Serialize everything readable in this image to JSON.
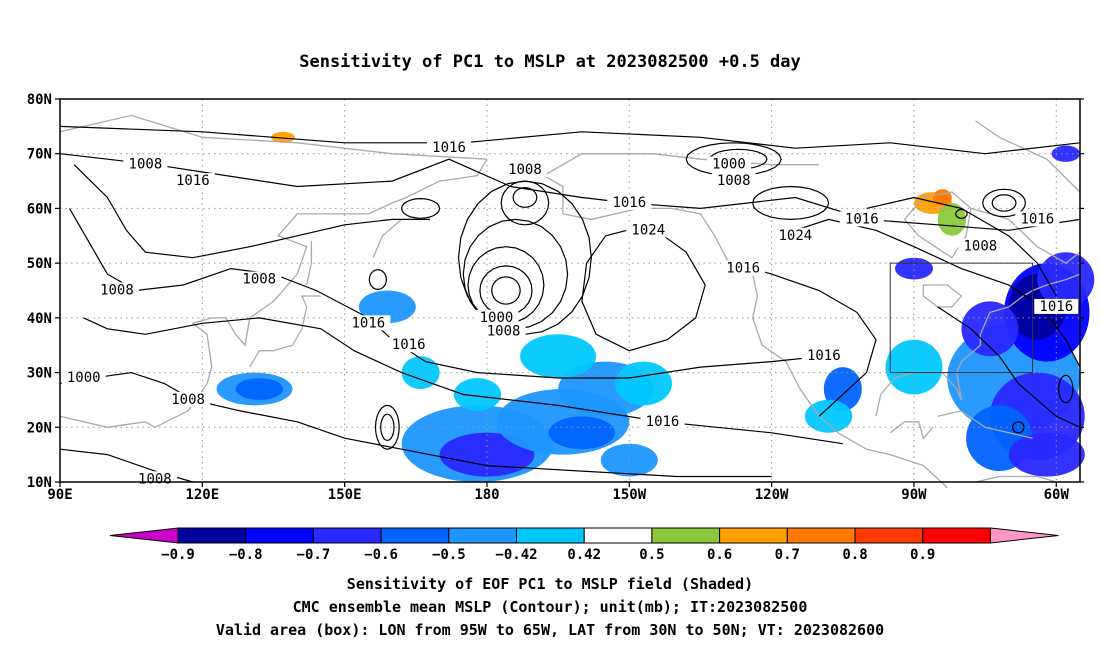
{
  "title": "Sensitivity of PC1 to MSLP at 2023082500 +0.5 day",
  "map": {
    "lat_labels": [
      "80N",
      "70N",
      "60N",
      "50N",
      "40N",
      "30N",
      "20N",
      "10N"
    ],
    "lon_labels": [
      "90E",
      "120E",
      "150E",
      "180",
      "150W",
      "120W",
      "90W",
      "60W"
    ],
    "lon_range": [
      90,
      305
    ],
    "lat_range": [
      10,
      80
    ],
    "grid": "dotted",
    "validation_box": {
      "lon": [
        265,
        295
      ],
      "lat": [
        30,
        50
      ]
    }
  },
  "contour_labels": [
    {
      "text": "1016",
      "lon": 172.0,
      "lat": 71.0
    },
    {
      "text": "1000",
      "lon": 231.0,
      "lat": 68.0
    },
    {
      "text": "1008",
      "lon": 108.0,
      "lat": 68.0
    },
    {
      "text": "1016",
      "lon": 118.0,
      "lat": 65.0
    },
    {
      "text": "1008",
      "lon": 188.0,
      "lat": 67.0
    },
    {
      "text": "1008",
      "lon": 232.0,
      "lat": 65.0
    },
    {
      "text": "1016",
      "lon": 210.0,
      "lat": 61.0
    },
    {
      "text": "1024",
      "lon": 214.0,
      "lat": 56.0
    },
    {
      "text": "1016",
      "lon": 259.0,
      "lat": 58.0
    },
    {
      "text": "1016",
      "lon": 296.0,
      "lat": 58.0
    },
    {
      "text": "1008",
      "lon": 284.0,
      "lat": 53.0
    },
    {
      "text": "1024",
      "lon": 245.0,
      "lat": 55.0
    },
    {
      "text": "1016",
      "lon": 234.0,
      "lat": 49.0
    },
    {
      "text": "1008",
      "lon": 132.0,
      "lat": 47.0
    },
    {
      "text": "1008",
      "lon": 102.0,
      "lat": 45.0
    },
    {
      "text": "1000",
      "lon": 182.0,
      "lat": 40.0
    },
    {
      "text": "1008",
      "lon": 183.5,
      "lat": 37.5
    },
    {
      "text": "1016",
      "lon": 155.0,
      "lat": 39.0
    },
    {
      "text": "1016",
      "lon": 163.5,
      "lat": 35.0
    },
    {
      "text": "1016",
      "lon": 251.0,
      "lat": 33.0
    },
    {
      "text": "1016",
      "lon": 300.0,
      "lat": 42.0
    },
    {
      "text": "1000",
      "lon": 95.0,
      "lat": 29.0
    },
    {
      "text": "1008",
      "lon": 117.0,
      "lat": 25.0
    },
    {
      "text": "1016",
      "lon": 217.0,
      "lat": 21.0
    },
    {
      "text": "1008",
      "lon": 110.0,
      "lat": 10.5
    }
  ],
  "colorbar": {
    "colors": [
      "#c800c8",
      "#0000a0",
      "#0000ff",
      "#2828ff",
      "#0064ff",
      "#1e96ff",
      "#00c8ff",
      "#ffffff",
      "#8cc83c",
      "#ffa000",
      "#ff7800",
      "#ff3c00",
      "#ff0000",
      "#ff96c8"
    ],
    "labels": [
      "−0.9",
      "−0.8",
      "−0.7",
      "−0.6",
      "−0.5",
      "−0.42",
      "0.42",
      "0.5",
      "0.6",
      "0.7",
      "0.8",
      "0.9"
    ]
  },
  "caption": {
    "line1": "Sensitivity of EOF PC1 to MSLP field (Shaded)",
    "line2": "CMC ensemble mean MSLP (Contour); unit(mb); IT:2023082500",
    "line3": "Valid area (box): LON from 95W to 65W, LAT from 30N to 50N; VT: 2023082600"
  }
}
